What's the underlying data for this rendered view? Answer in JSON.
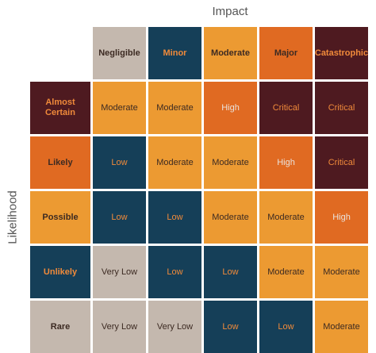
{
  "axes": {
    "impact_label": "Impact",
    "likelihood_label": "Likelihood"
  },
  "impact_levels": [
    "Negligible",
    "Minor",
    "Moderate",
    "Major",
    "Catastrophic"
  ],
  "likelihood_levels": [
    "Almost Certain",
    "Likely",
    "Possible",
    "Unlikely",
    "Rare"
  ],
  "matrix": [
    [
      "Moderate",
      "Moderate",
      "High",
      "Critical",
      "Critical"
    ],
    [
      "Low",
      "Moderate",
      "Moderate",
      "High",
      "Critical"
    ],
    [
      "Low",
      "Low",
      "Moderate",
      "Moderate",
      "High"
    ],
    [
      "Very Low",
      "Low",
      "Low",
      "Moderate",
      "Moderate"
    ],
    [
      "Very Low",
      "Very Low",
      "Low",
      "Low",
      "Moderate"
    ]
  ],
  "colors": {
    "very_low": "#c4b8ae",
    "low": "#153f58",
    "moderate": "#ec9a32",
    "high": "#e06a22",
    "critical": "#4e1a20"
  }
}
